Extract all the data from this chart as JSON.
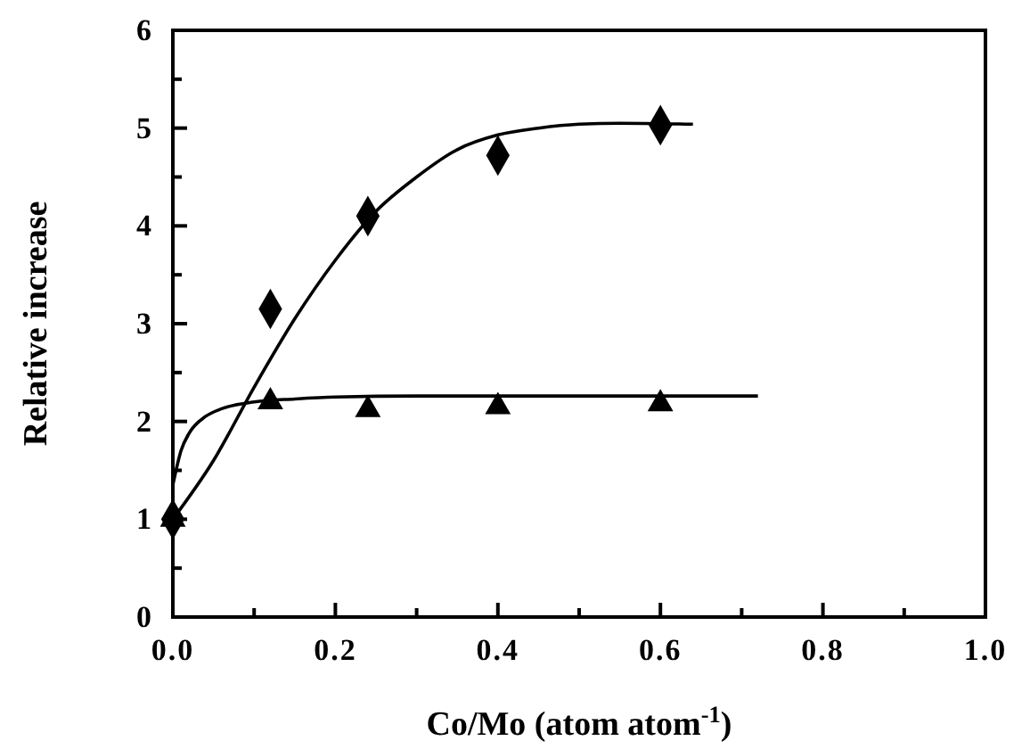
{
  "chart_data": {
    "type": "scatter",
    "xlabel": "Co/Mo (atom atom$^{-1}$)",
    "ylabel": "Relative increase",
    "xlim": [
      0,
      1
    ],
    "ylim": [
      0,
      6
    ],
    "xticks": [
      {
        "value": 0,
        "label": "0.0"
      },
      {
        "value": 0.1,
        "label": null
      },
      {
        "value": 0.2,
        "label": "0.2"
      },
      {
        "value": 0.3,
        "label": null
      },
      {
        "value": 0.4,
        "label": "0.4"
      },
      {
        "value": 0.5,
        "label": null
      },
      {
        "value": 0.6,
        "label": "0.6"
      },
      {
        "value": 0.7,
        "label": null
      },
      {
        "value": 0.8,
        "label": "0.8"
      },
      {
        "value": 0.9,
        "label": null
      },
      {
        "value": 1,
        "label": "1.0"
      }
    ],
    "yticks": [
      0,
      {
        "value": 0.5,
        "label": null
      },
      1,
      {
        "value": 1.5,
        "label": null
      },
      2,
      {
        "value": 2.5,
        "label": null
      },
      3,
      {
        "value": 3.5,
        "label": null
      },
      4,
      {
        "value": 4.5,
        "label": null
      },
      5,
      {
        "value": 5.5,
        "label": null
      },
      6
    ],
    "grid": false,
    "series": [
      {
        "marker": "diamond",
        "color": "#000000",
        "x": [
          0,
          0.12,
          0.24,
          0.4,
          0.6
        ],
        "values": [
          1.0,
          3.15,
          4.1,
          4.72,
          5.03
        ]
      },
      {
        "marker": "triangle",
        "color": "#000000",
        "x": [
          0,
          0.12,
          0.24,
          0.4,
          0.6
        ],
        "values": [
          1.0,
          2.2,
          2.12,
          2.15,
          2.18
        ]
      },
      {
        "type": "line",
        "marker": "none",
        "line_style": "solid",
        "color": "#000000",
        "x": [
          0,
          0.05,
          0.1,
          0.15,
          0.2,
          0.25,
          0.3,
          0.35,
          0.4,
          0.45,
          0.5,
          0.55,
          0.64
        ],
        "values": [
          1.0,
          1.6,
          2.35,
          3.05,
          3.65,
          4.15,
          4.5,
          4.78,
          4.93,
          5.0,
          5.04,
          5.05,
          5.04
        ]
      },
      {
        "type": "line",
        "marker": "none",
        "line_style": "solid",
        "color": "#000000",
        "x": [
          0,
          0.01,
          0.02,
          0.04,
          0.06,
          0.1,
          0.15,
          0.2,
          0.3,
          0.72
        ],
        "values": [
          1.35,
          1.7,
          1.88,
          2.05,
          2.13,
          2.2,
          2.23,
          2.25,
          2.26,
          2.26
        ]
      }
    ]
  }
}
